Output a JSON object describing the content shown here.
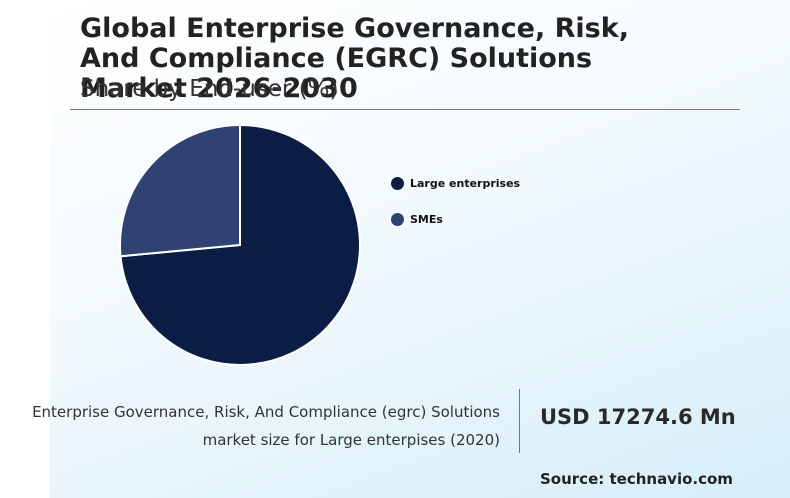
{
  "header": {
    "title": "Global Enterprise Governance, Risk, And Compliance (EGRC) Solutions Market 2026-2030",
    "subtitle": "Share by End-user (%)"
  },
  "chart_data": {
    "type": "pie",
    "title": "Global Enterprise Governance, Risk, And Compliance (EGRC) Solutions Market 2026-2030",
    "subtitle": "Share by End-user (%)",
    "categories": [
      "Large enterprises",
      "SMEs"
    ],
    "values": [
      73.5,
      26.5
    ],
    "colors": [
      "#0b1d45",
      "#2f4272"
    ],
    "legend_position": "right"
  },
  "legend": {
    "items": [
      {
        "label": "Large enterprises",
        "color": "#0b1d45"
      },
      {
        "label": "SMEs",
        "color": "#2f4272"
      }
    ]
  },
  "footer": {
    "caption_line1": "Enterprise Governance, Risk, And Compliance (egrc) Solutions",
    "caption_line2": "market size for Large enterpises (2020)",
    "stat_value": "USD 17274.6 Mn",
    "source": "Source: technavio.com"
  },
  "colors": {
    "text_dark": "#222222",
    "panel_gradient_end": "#d6eef9"
  }
}
